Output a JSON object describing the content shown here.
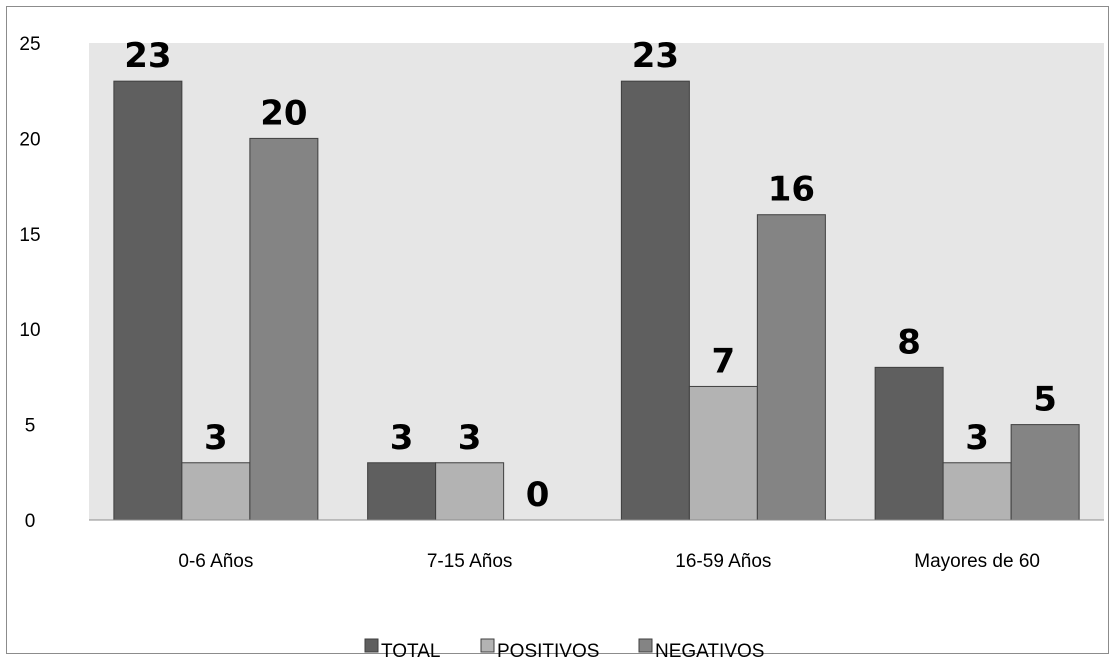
{
  "chart_data": {
    "type": "bar",
    "categories": [
      "0-6 Años",
      "7-15 Años",
      "16-59 Años",
      "Mayores de 60"
    ],
    "series": [
      {
        "name": "TOTAL",
        "values": [
          23,
          3,
          23,
          8
        ],
        "color": "#5f5f5f"
      },
      {
        "name": "POSITIVOS",
        "values": [
          3,
          3,
          7,
          3
        ],
        "color": "#b3b3b3"
      },
      {
        "name": "NEGATIVOS",
        "values": [
          20,
          0,
          16,
          5
        ],
        "color": "#848484"
      }
    ],
    "ylim": [
      0,
      25
    ],
    "yticks": [
      "0",
      "5",
      "10",
      "15",
      "20",
      "25"
    ],
    "plot_background": "#e6e6e6",
    "grid": false,
    "legend_position": "bottom",
    "data_labels": true
  }
}
